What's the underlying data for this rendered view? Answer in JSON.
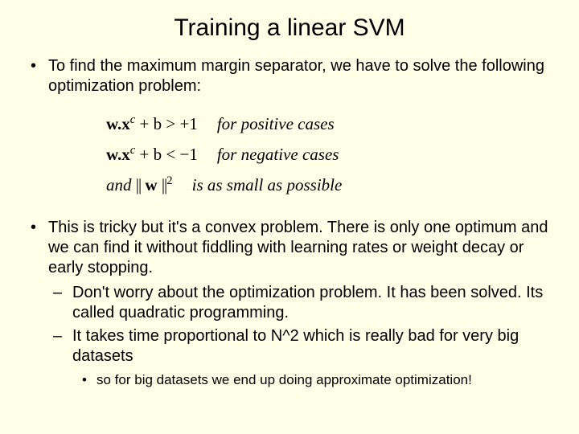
{
  "title": "Training a linear SVM",
  "bullets": {
    "b1": "To find the maximum margin separator, we have to solve the following optimization problem:",
    "b2": "This is tricky but it's a convex problem. There is only one optimum and we can find it without fiddling with learning rates or weight decay or early stopping.",
    "b2_sub1": "Don't worry about the optimization problem. It has been solved. Its called quadratic programming.",
    "b2_sub2": "It takes time proportional to N^2 which is really bad for very big datasets",
    "b2_subsub": "so for big datasets we end up doing approximate optimization!"
  },
  "equations": {
    "line1_left": "w.x",
    "line1_sup": "c",
    "line1_rest": " + b > +1",
    "line1_desc": "for  positive cases",
    "line2_left": "w.x",
    "line2_sup": "c",
    "line2_rest": " + b < −1",
    "line2_desc": "for negative cases",
    "line3_pre": "and   ",
    "line3_norm_l": "||",
    "line3_w": "w",
    "line3_norm_r": "||",
    "line3_sup": "2",
    "line3_desc": "is as small as possible"
  },
  "style": {
    "background": "#ffffe8",
    "title_fontsize": 30,
    "body_fontsize": 20,
    "subsub_fontsize": 17,
    "eq_fontsize": 21
  }
}
